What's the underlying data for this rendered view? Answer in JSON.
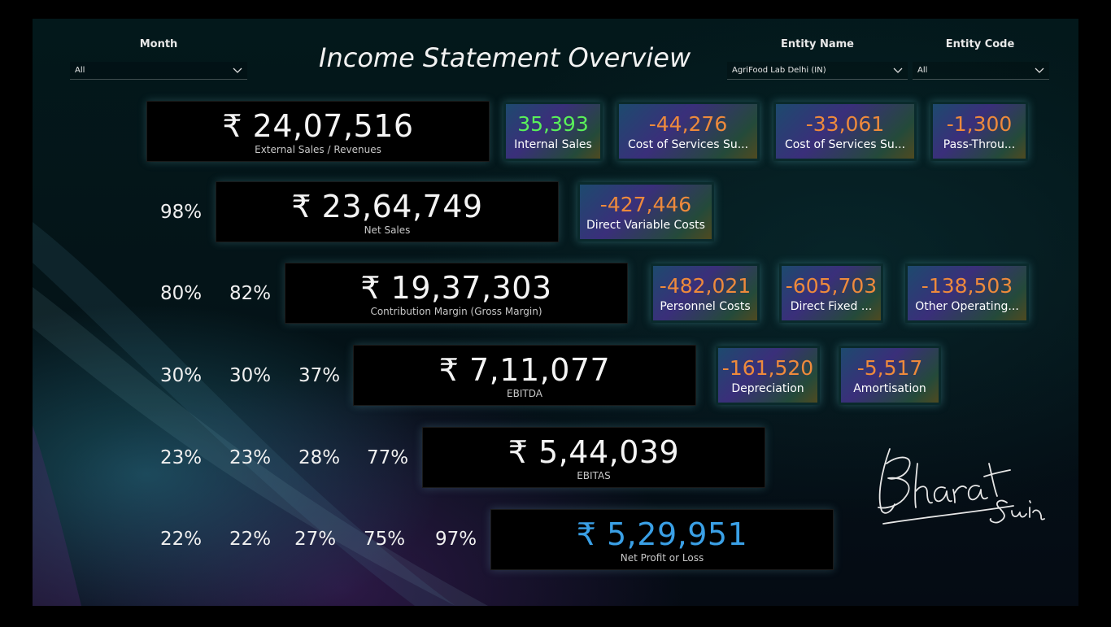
{
  "title": "Income Statement Overview",
  "filters": {
    "month": {
      "label": "Month",
      "value": "All"
    },
    "entity_name": {
      "label": "Entity Name",
      "value": "AgriFood Lab Delhi (IN)"
    },
    "entity_code": {
      "label": "Entity Code",
      "value": "All"
    }
  },
  "cards": {
    "external_sales": {
      "value": "₹ 24,07,516",
      "label": "External Sales / Revenues"
    },
    "net_sales": {
      "value": "₹ 23,64,749",
      "label": "Net Sales"
    },
    "contribution_margin": {
      "value": "₹ 19,37,303",
      "label": "Contribution Margin (Gross Margin)"
    },
    "ebitda": {
      "value": "₹ 7,11,077",
      "label": "EBITDA"
    },
    "ebitas": {
      "value": "₹ 5,44,039",
      "label": "EBITAS"
    },
    "net_profit": {
      "value": "₹ 5,29,951",
      "label": "Net Profit or Loss"
    }
  },
  "kpis": {
    "internal_sales": {
      "value": "35,393",
      "label": "Internal Sales"
    },
    "cost_services_1": {
      "value": "-44,276",
      "label": "Cost of Services Su..."
    },
    "cost_services_2": {
      "value": "-33,061",
      "label": "Cost of Services Su..."
    },
    "pass_through": {
      "value": "-1,300",
      "label": "Pass-Throu..."
    },
    "direct_variable": {
      "value": "-427,446",
      "label": "Direct Variable Costs"
    },
    "personnel": {
      "value": "-482,021",
      "label": "Personnel Costs"
    },
    "direct_fixed": {
      "value": "-605,703",
      "label": "Direct Fixed ..."
    },
    "other_operating": {
      "value": "-138,503",
      "label": "Other Operating..."
    },
    "depreciation": {
      "value": "-161,520",
      "label": "Depreciation"
    },
    "amortisation": {
      "value": "-5,517",
      "label": "Amortisation"
    }
  },
  "percentages": {
    "row2": [
      "98%"
    ],
    "row3": [
      "80%",
      "82%"
    ],
    "row4": [
      "30%",
      "30%",
      "37%"
    ],
    "row5": [
      "23%",
      "23%",
      "28%",
      "77%"
    ],
    "row6": [
      "22%",
      "22%",
      "27%",
      "75%",
      "97%"
    ]
  },
  "signature": "Bharat Suri",
  "colors": {
    "kpi_value": "#ee8a3c",
    "kpi_value_positive": "#5af05a",
    "net_profit": "#3aa0e6",
    "card_background": "#000000"
  }
}
